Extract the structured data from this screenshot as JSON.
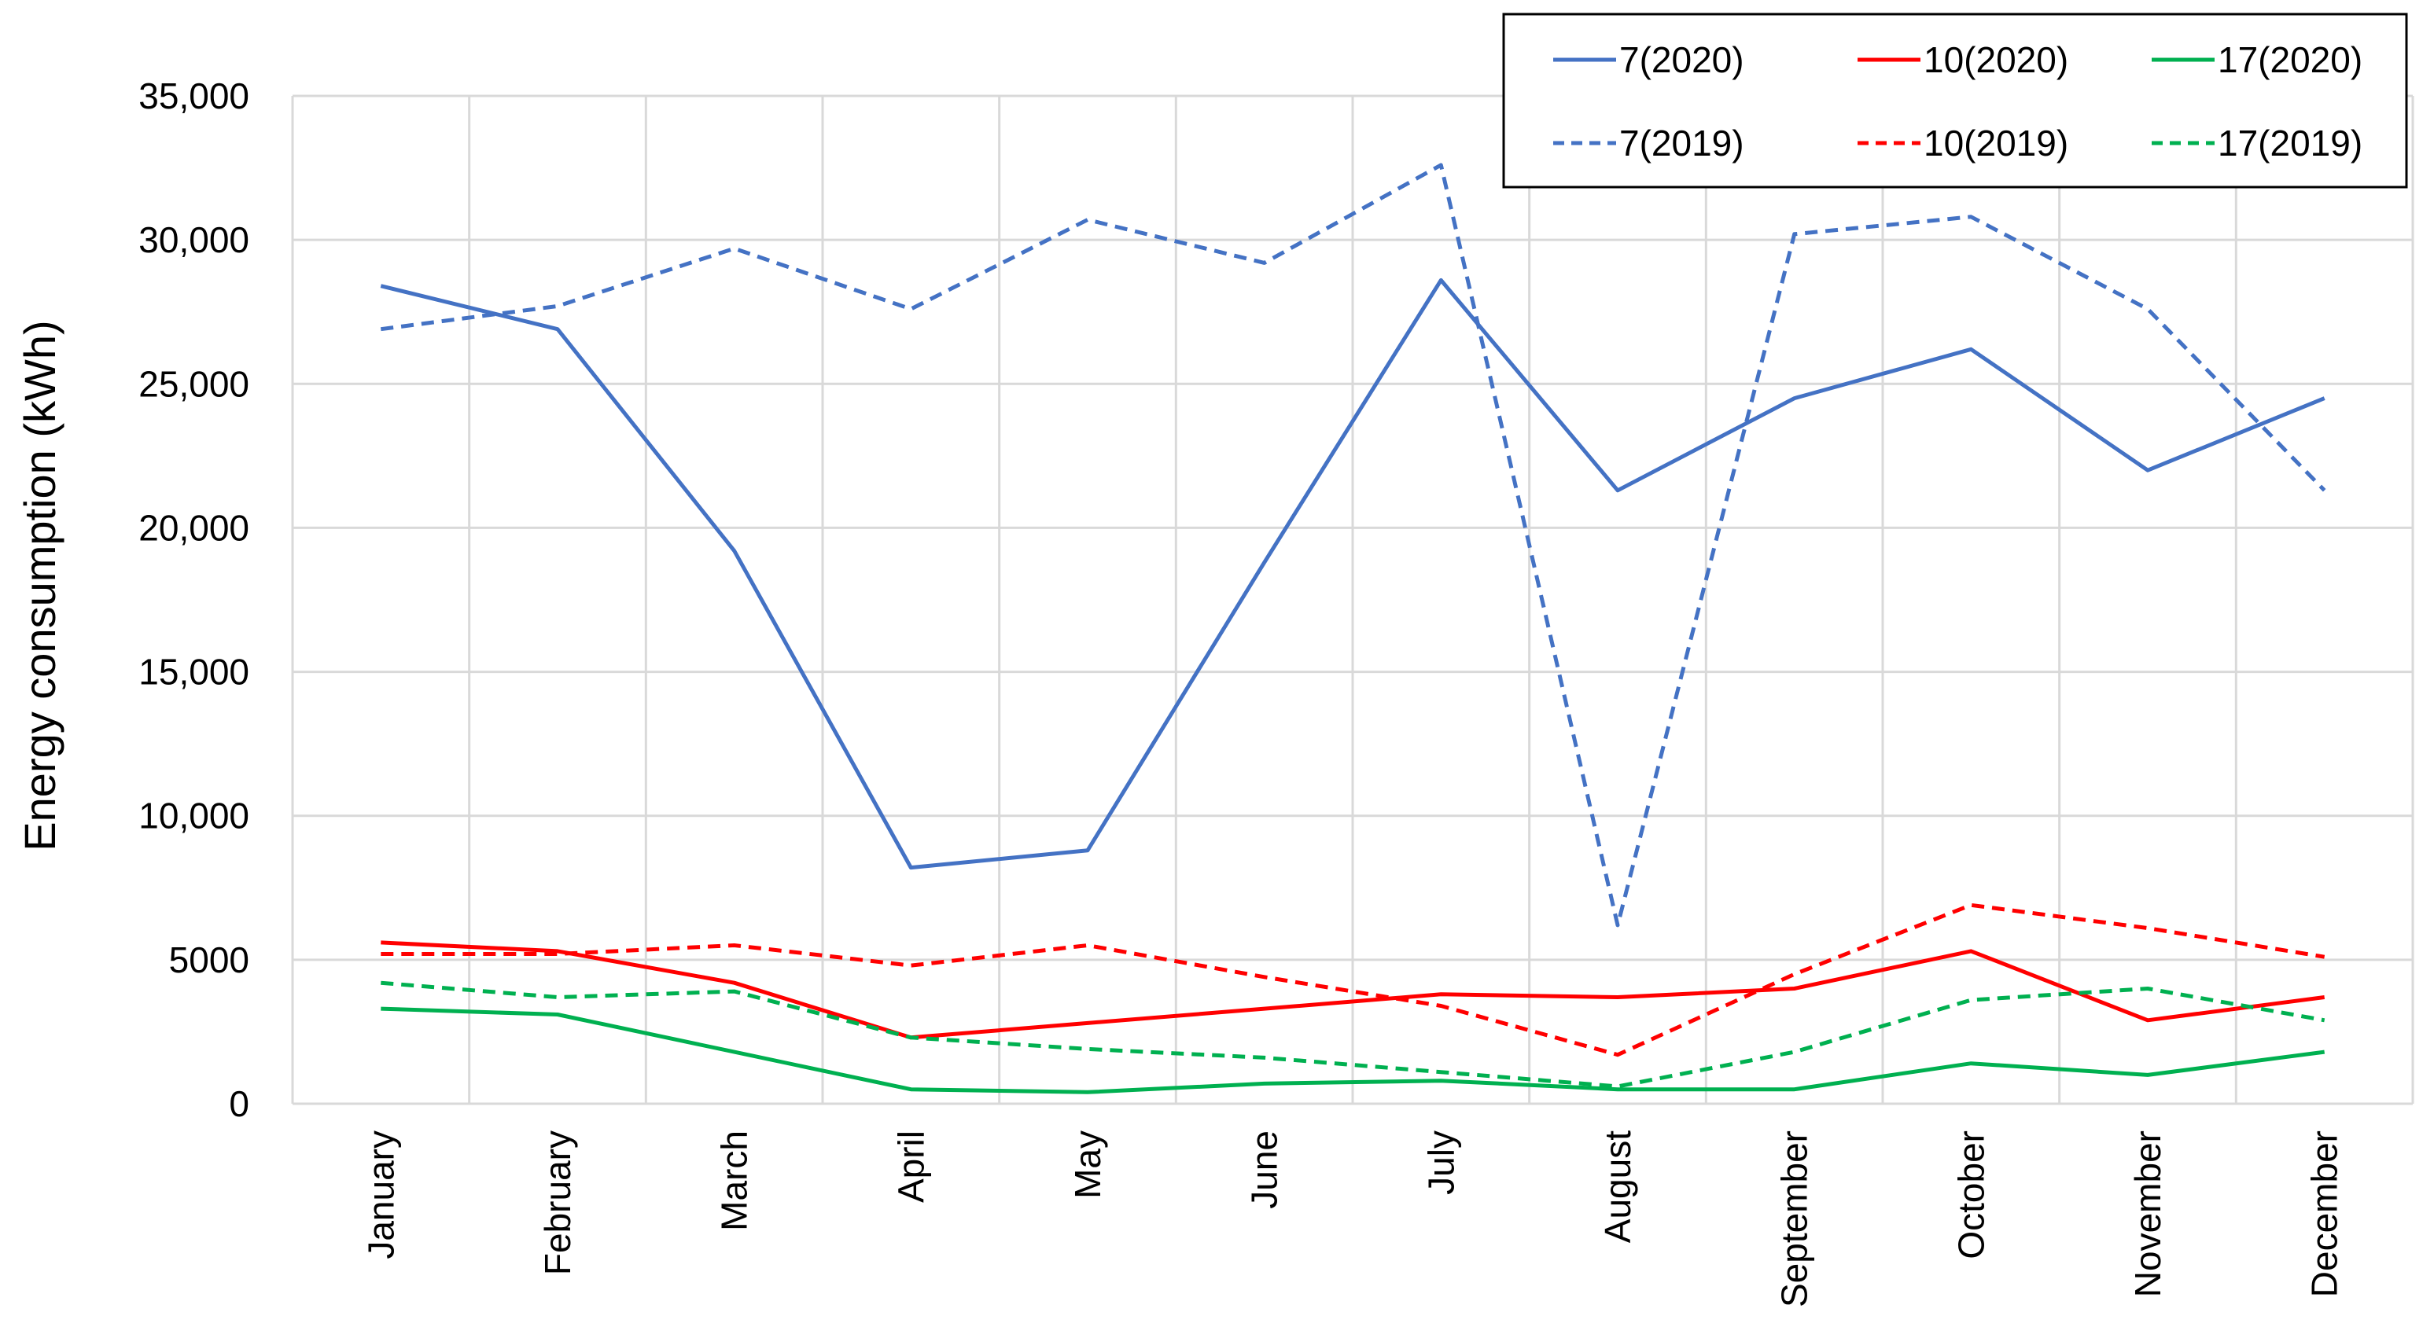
{
  "chart_data": {
    "type": "line",
    "title": "",
    "xlabel": "",
    "ylabel": "Energy consumption (kWh)",
    "ylim": [
      0,
      35000
    ],
    "yticks": [
      0,
      5000,
      10000,
      15000,
      20000,
      25000,
      30000,
      35000
    ],
    "ytick_labels": [
      "0",
      "5000",
      "10,000",
      "15,000",
      "20,000",
      "25,000",
      "30,000",
      "35,000"
    ],
    "grid": true,
    "legend_position": "top-right",
    "categories": [
      "January",
      "February",
      "March",
      "April",
      "May",
      "June",
      "July",
      "August",
      "September",
      "October",
      "November",
      "December"
    ],
    "series": [
      {
        "name": "7(2020)",
        "color": "#4472c4",
        "dash": "solid",
        "values": [
          28400,
          26900,
          19200,
          8200,
          8800,
          18800,
          28600,
          21300,
          24500,
          26200,
          22000,
          24500
        ]
      },
      {
        "name": "10(2020)",
        "color": "#ff0000",
        "dash": "solid",
        "values": [
          5600,
          5300,
          4200,
          2300,
          2800,
          3300,
          3800,
          3700,
          4000,
          5300,
          2900,
          3700
        ]
      },
      {
        "name": "17(2020)",
        "color": "#00b050",
        "dash": "solid",
        "values": [
          3300,
          3100,
          1800,
          500,
          400,
          700,
          800,
          500,
          500,
          1400,
          1000,
          1800
        ]
      },
      {
        "name": "7(2019)",
        "color": "#4472c4",
        "dash": "dashed",
        "values": [
          26900,
          27700,
          29700,
          27600,
          30700,
          29200,
          32600,
          6200,
          30200,
          30800,
          27600,
          21300
        ]
      },
      {
        "name": "10(2019)",
        "color": "#ff0000",
        "dash": "dashed",
        "values": [
          5200,
          5200,
          5500,
          4800,
          5500,
          4400,
          3400,
          1700,
          4500,
          6900,
          6100,
          5100
        ]
      },
      {
        "name": "17(2019)",
        "color": "#00b050",
        "dash": "dashed",
        "values": [
          4200,
          3700,
          3900,
          2300,
          1900,
          1600,
          1100,
          600,
          1800,
          3600,
          4000,
          2900
        ]
      }
    ]
  }
}
